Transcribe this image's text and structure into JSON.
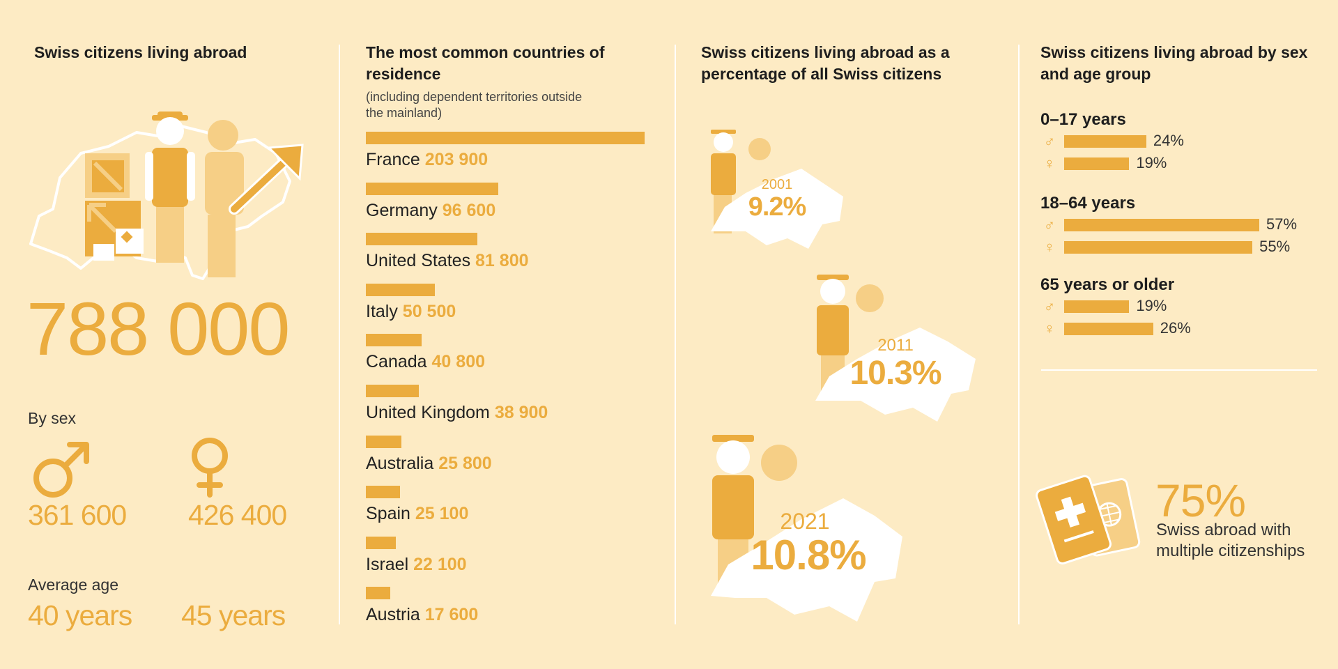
{
  "colors": {
    "accent": "#ebac3e",
    "background": "#fdebc4",
    "light_accent": "#f6cf86",
    "white": "#ffffff"
  },
  "panel1": {
    "title": "Swiss citizens living abroad",
    "total": "788 000",
    "by_sex_label": "By sex",
    "male_icon": "male-symbol-icon",
    "female_icon": "female-symbol-icon",
    "male_value": "361 600",
    "female_value": "426 400",
    "average_age_label": "Average age",
    "male_age": "40 years",
    "female_age": "45 years"
  },
  "panel2": {
    "title": "The most common countries of residence",
    "note": "(including dependent territories outside the mainland)"
  },
  "panel3": {
    "title": "Swiss citizens living abroad as a percentage of all Swiss citizens",
    "entries": [
      {
        "year": "2001",
        "pct": "9.2%"
      },
      {
        "year": "2011",
        "pct": "10.3%"
      },
      {
        "year": "2021",
        "pct": "10.8%"
      }
    ]
  },
  "panel4": {
    "title": "Swiss citizens living abroad by sex and age group",
    "groups": [
      {
        "label": "0–17 years",
        "male": "24%",
        "female": "19%"
      },
      {
        "label": "18–64 years",
        "male": "57%",
        "female": "55%"
      },
      {
        "label": "65 years or older",
        "male": "19%",
        "female": "26%"
      }
    ],
    "multi_pct": "75%",
    "multi_label": "Swiss abroad with multiple citizenships"
  },
  "chart_data": [
    {
      "type": "bar",
      "title": "The most common countries of residence",
      "categories": [
        "France",
        "Germany",
        "United States",
        "Italy",
        "Canada",
        "United Kingdom",
        "Australia",
        "Spain",
        "Israel",
        "Austria"
      ],
      "values": [
        203900,
        96600,
        81800,
        50500,
        40800,
        38900,
        25800,
        25100,
        22100,
        17600
      ],
      "value_labels": [
        "203 900",
        "96 600",
        "81 800",
        "50 500",
        "40 800",
        "38 900",
        "25 800",
        "25 100",
        "22 100",
        "17 600"
      ]
    },
    {
      "type": "bar",
      "title": "Swiss citizens living abroad by sex and age group",
      "categories": [
        "0–17 years",
        "18–64 years",
        "65 years or older"
      ],
      "series": [
        {
          "name": "♂",
          "values": [
            24,
            57,
            19
          ]
        },
        {
          "name": "♀",
          "values": [
            19,
            55,
            26
          ]
        }
      ],
      "unit": "%"
    },
    {
      "type": "line",
      "title": "Swiss citizens living abroad as a percentage of all Swiss citizens",
      "x": [
        2001,
        2011,
        2021
      ],
      "y": [
        9.2,
        10.3,
        10.8
      ],
      "unit": "%"
    }
  ]
}
